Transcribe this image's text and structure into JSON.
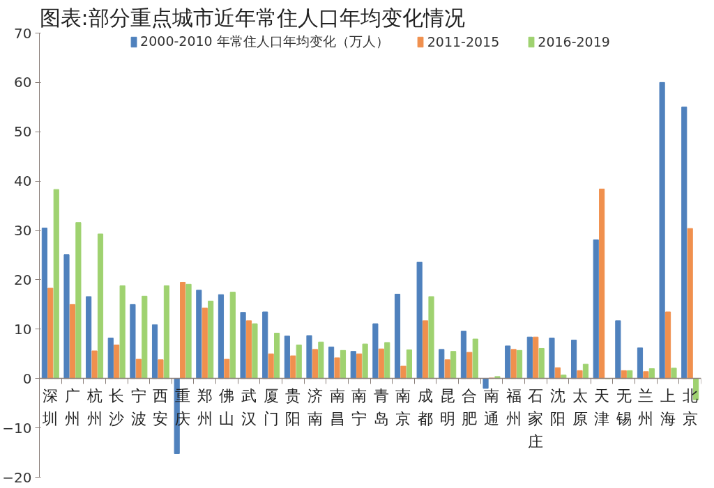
{
  "chart_data": {
    "type": "bar",
    "title": "图表:部分重点城市近年常住人口年均变化情况",
    "categories": [
      "深圳",
      "广州",
      "杭州",
      "长沙",
      "宁波",
      "西安",
      "重庆",
      "郑州",
      "佛山",
      "武汉",
      "厦门",
      "贵阳",
      "济南",
      "南昌",
      "南宁",
      "青岛",
      "南京",
      "成都",
      "昆明",
      "合肥",
      "南通",
      "福州",
      "石家庄",
      "沈阳",
      "太原",
      "天津",
      "无锡",
      "兰州",
      "上海",
      "北京"
    ],
    "series": [
      {
        "name": "2000-2010 年常住人口年均变化（万人）",
        "color": "#4f81bd",
        "values": [
          30.5,
          25.1,
          16.6,
          8.2,
          15.0,
          10.9,
          -15.2,
          17.9,
          17.0,
          13.4,
          13.5,
          8.6,
          8.7,
          6.4,
          5.5,
          11.1,
          17.1,
          23.6,
          5.9,
          9.6,
          -2.0,
          6.6,
          8.4,
          8.2,
          7.8,
          28.1,
          11.7,
          6.2,
          60.0,
          55.0
        ]
      },
      {
        "name": "2011-2015",
        "color": "#f0904e",
        "values": [
          18.3,
          15.0,
          5.6,
          6.8,
          3.9,
          3.8,
          19.5,
          14.3,
          3.9,
          11.7,
          5.0,
          4.6,
          5.9,
          4.2,
          5.0,
          6.0,
          2.5,
          11.7,
          3.8,
          5.3,
          0.1,
          5.9,
          8.4,
          2.2,
          1.6,
          38.4,
          1.6,
          1.4,
          13.5,
          30.4
        ]
      },
      {
        "name": "2016-2019",
        "color": "#9fd270",
        "values": [
          38.3,
          31.6,
          29.3,
          18.8,
          16.7,
          18.8,
          19.1,
          15.7,
          17.5,
          11.1,
          9.2,
          6.8,
          7.4,
          5.7,
          7.0,
          7.3,
          5.8,
          16.6,
          5.5,
          8.0,
          0.4,
          5.7,
          6.1,
          0.7,
          2.9,
          0,
          1.6,
          2.0,
          2.1,
          -4.3
        ]
      }
    ],
    "ylim": [
      -20,
      70
    ],
    "yticks": [
      -20,
      -10,
      0,
      10,
      20,
      30,
      40,
      50,
      60,
      70
    ],
    "grid": false,
    "legend": "top"
  }
}
